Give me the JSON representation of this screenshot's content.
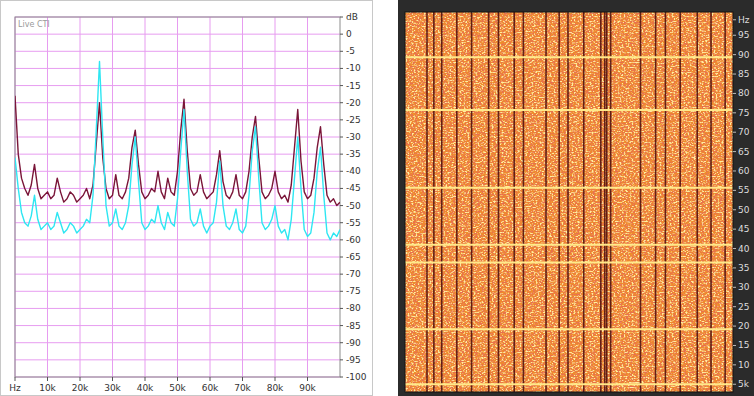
{
  "chart_data": [
    {
      "type": "line",
      "title": "Live CTI",
      "x": [
        0,
        1,
        2,
        3,
        4,
        5,
        6,
        7,
        8,
        9,
        10,
        11,
        12,
        13,
        14,
        15,
        16,
        17,
        18,
        19,
        20,
        21,
        22,
        23,
        24,
        25,
        26,
        27,
        28,
        29,
        30,
        31,
        32,
        33,
        34,
        35,
        36,
        37,
        38,
        39,
        40,
        41,
        42,
        43,
        44,
        45,
        46,
        47,
        48,
        49,
        50,
        51,
        52,
        53,
        54,
        55,
        56,
        57,
        58,
        59,
        60,
        61,
        62,
        63,
        64,
        65,
        66,
        67,
        68,
        69,
        70,
        71,
        72,
        73,
        74,
        75,
        76,
        77,
        78,
        79,
        80,
        81,
        82,
        83,
        84,
        85,
        86,
        87,
        88,
        89,
        90,
        91,
        92,
        93,
        94,
        95,
        96,
        97,
        98,
        99,
        100
      ],
      "series": [
        {
          "color": "#7a1538",
          "values": [
            -18,
            -35,
            -42,
            -45,
            -47,
            -44,
            -38,
            -45,
            -48,
            -47,
            -46,
            -48,
            -47,
            -42,
            -46,
            -49,
            -48,
            -46,
            -47,
            -49,
            -48,
            -47,
            -45,
            -48,
            -44,
            -32,
            -20,
            -36,
            -45,
            -48,
            -47,
            -41,
            -47,
            -48,
            -46,
            -42,
            -33,
            -28,
            -38,
            -46,
            -48,
            -47,
            -45,
            -46,
            -40,
            -46,
            -48,
            -42,
            -46,
            -47,
            -40,
            -28,
            -19,
            -34,
            -45,
            -47,
            -46,
            -41,
            -46,
            -48,
            -47,
            -46,
            -41,
            -34,
            -43,
            -47,
            -48,
            -46,
            -41,
            -47,
            -48,
            -46,
            -40,
            -30,
            -24,
            -36,
            -46,
            -48,
            -47,
            -45,
            -40,
            -46,
            -48,
            -47,
            -49,
            -44,
            -33,
            -22,
            -37,
            -46,
            -48,
            -47,
            -42,
            -33,
            -27,
            -38,
            -47,
            -49,
            -48,
            -50,
            -49
          ]
        },
        {
          "color": "#2ee6f2",
          "values": [
            -36,
            -45,
            -52,
            -55,
            -56,
            -53,
            -47,
            -54,
            -57,
            -56,
            -55,
            -57,
            -56,
            -52,
            -55,
            -58,
            -57,
            -55,
            -56,
            -58,
            -57,
            -56,
            -54,
            -55,
            -47,
            -28,
            -8,
            -30,
            -50,
            -56,
            -55,
            -51,
            -56,
            -57,
            -55,
            -50,
            -38,
            -30,
            -43,
            -55,
            -57,
            -56,
            -54,
            -55,
            -50,
            -55,
            -57,
            -52,
            -55,
            -56,
            -48,
            -34,
            -22,
            -40,
            -54,
            -56,
            -55,
            -51,
            -56,
            -58,
            -56,
            -55,
            -49,
            -37,
            -50,
            -56,
            -57,
            -55,
            -51,
            -57,
            -58,
            -56,
            -47,
            -34,
            -27,
            -42,
            -55,
            -57,
            -56,
            -54,
            -50,
            -56,
            -58,
            -57,
            -60,
            -54,
            -42,
            -30,
            -45,
            -57,
            -59,
            -58,
            -52,
            -40,
            -33,
            -47,
            -58,
            -60,
            -58,
            -59,
            -57
          ]
        }
      ],
      "xlim": [
        0,
        100
      ],
      "ylim": [
        -100,
        5
      ],
      "xticks": [
        {
          "value": 0,
          "label": "Hz"
        },
        {
          "value": 10,
          "label": "10k"
        },
        {
          "value": 20,
          "label": "20k"
        },
        {
          "value": 30,
          "label": "30k"
        },
        {
          "value": 40,
          "label": "40k"
        },
        {
          "value": 50,
          "label": "50k"
        },
        {
          "value": 60,
          "label": "60k"
        },
        {
          "value": 70,
          "label": "70k"
        },
        {
          "value": 80,
          "label": "80k"
        },
        {
          "value": 90,
          "label": "90k"
        }
      ],
      "yticks": [
        {
          "value": 5,
          "label": "dB"
        },
        0,
        -5,
        -10,
        -15,
        -20,
        -25,
        -30,
        -35,
        -40,
        -45,
        -50,
        -55,
        -60,
        -65,
        -70,
        -75,
        -80,
        -85,
        -90,
        -95,
        -100
      ],
      "grid": true
    },
    {
      "type": "spectrogram",
      "lines": [
        89.3,
        75.7,
        55.7,
        41,
        36.4,
        19.2,
        5
      ],
      "dark_columns": [
        6.7,
        8.8,
        11.2,
        15.8,
        20.3,
        25.5,
        28.5,
        33.3,
        36.1,
        43,
        47,
        49.7,
        54.5,
        59.7,
        60.9,
        61.5,
        62.7,
        71.8,
        76.4,
        79.4,
        83.9,
        89.1,
        93.3,
        97.6
      ],
      "xlim": [
        0,
        100
      ],
      "ylim": [
        3,
        101
      ],
      "yticks": [
        {
          "value": 99,
          "label": "Hz"
        },
        95,
        90,
        85,
        80,
        75,
        70,
        65,
        60,
        55,
        50,
        45,
        40,
        35,
        30,
        25,
        20,
        15,
        10,
        {
          "value": 5,
          "label": "5k"
        }
      ],
      "tick_labels": "y"
    }
  ]
}
